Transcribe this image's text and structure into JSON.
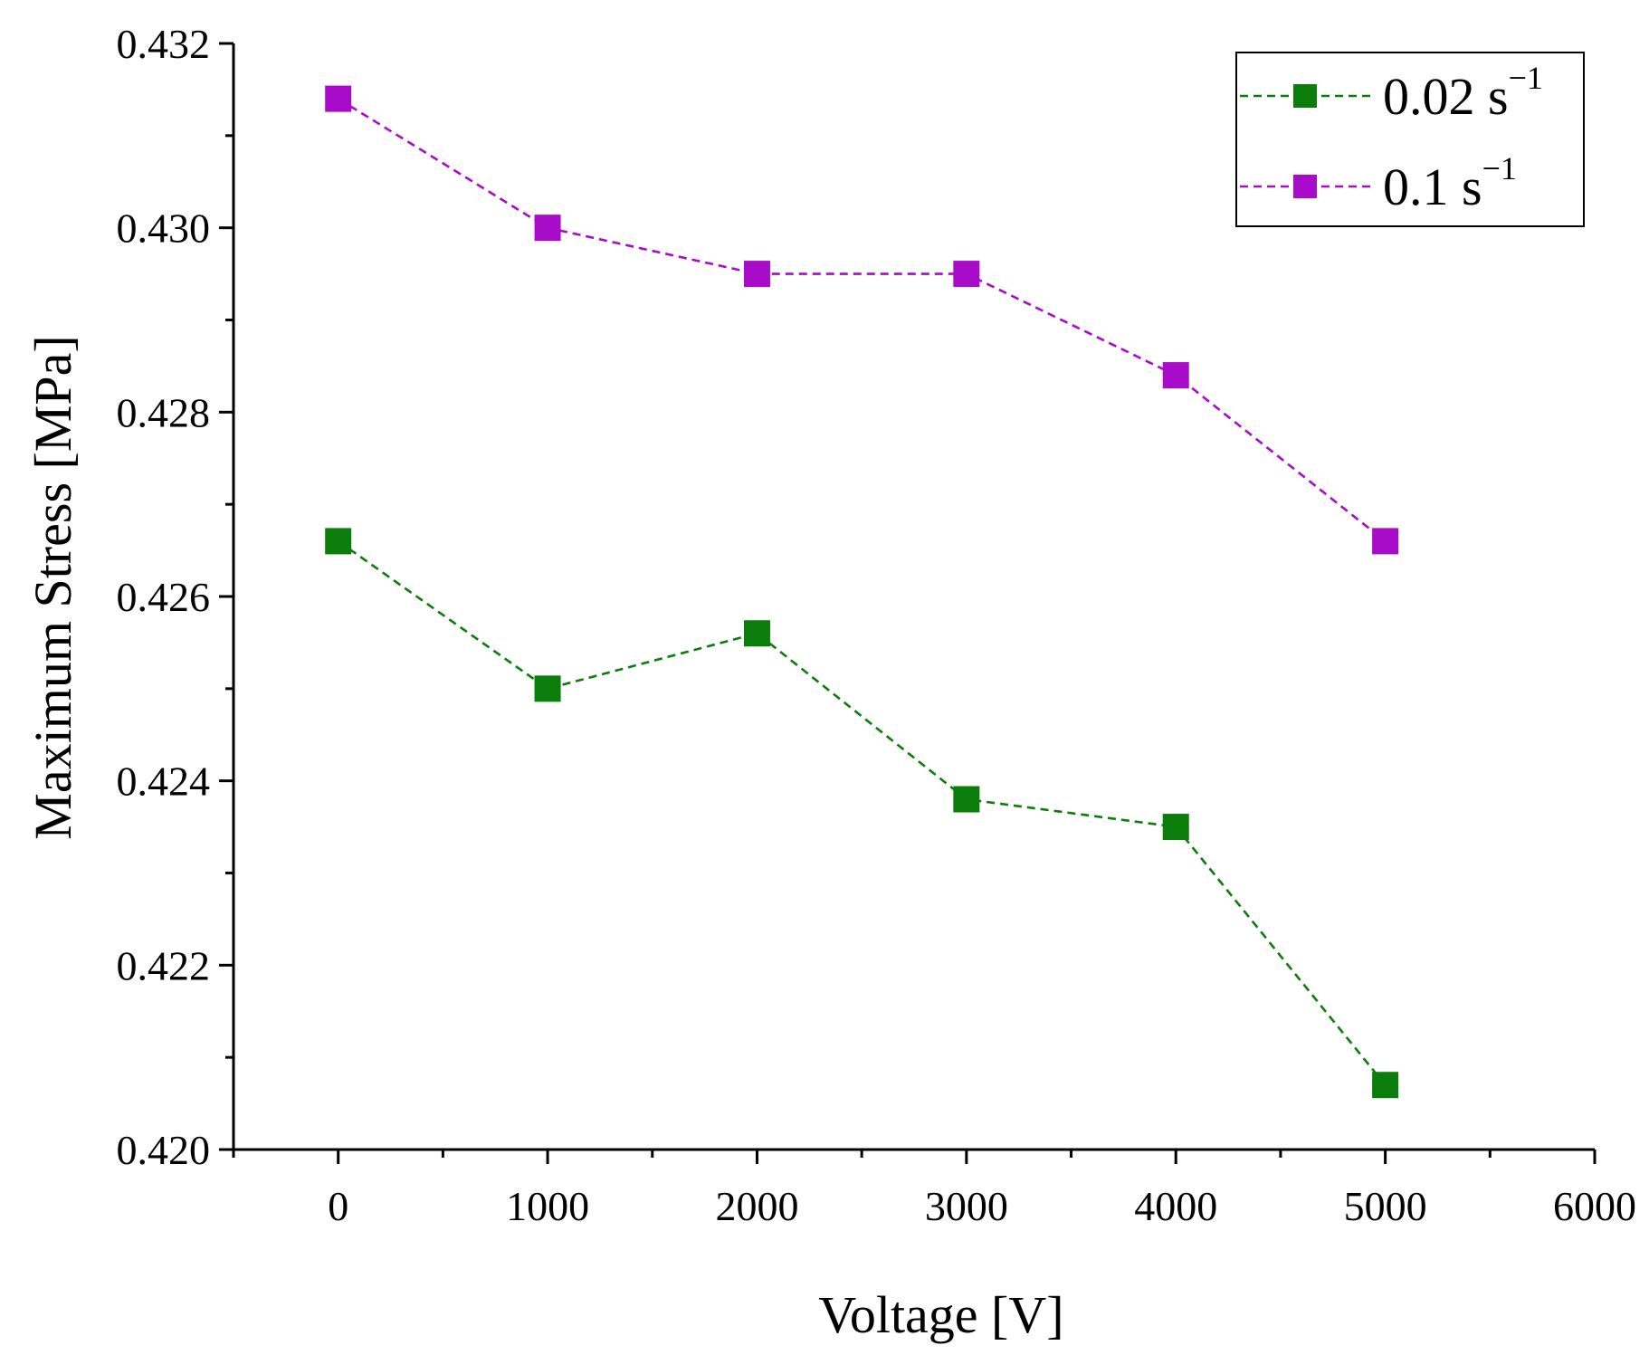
{
  "chart_data": {
    "type": "line",
    "title": "",
    "xlabel": "Voltage [V]",
    "ylabel": "Maximum Stress [MPa]",
    "xlim": [
      -500,
      6000
    ],
    "ylim": [
      0.42,
      0.432
    ],
    "x_ticks": [
      {
        "value": 0,
        "label": "0"
      },
      {
        "value": 1000,
        "label": "1000"
      },
      {
        "value": 2000,
        "label": "2000"
      },
      {
        "value": 3000,
        "label": "3000"
      },
      {
        "value": 4000,
        "label": "4000"
      },
      {
        "value": 5000,
        "label": "5000"
      },
      {
        "value": 6000,
        "label": "6000"
      }
    ],
    "x_minor_ticks": [
      -500,
      500,
      1500,
      2500,
      3500,
      4500,
      5500
    ],
    "y_ticks": [
      {
        "value": 0.42,
        "label": "0.420"
      },
      {
        "value": 0.422,
        "label": "0.422"
      },
      {
        "value": 0.424,
        "label": "0.424"
      },
      {
        "value": 0.426,
        "label": "0.426"
      },
      {
        "value": 0.428,
        "label": "0.428"
      },
      {
        "value": 0.43,
        "label": "0.430"
      },
      {
        "value": 0.432,
        "label": "0.432"
      }
    ],
    "y_minor_ticks": [
      0.421,
      0.423,
      0.425,
      0.427,
      0.429,
      0.431
    ],
    "grid": false,
    "legend_position": "top-right",
    "x": [
      0,
      1000,
      2000,
      3000,
      4000,
      5000
    ],
    "series": [
      {
        "name": "0.02 s",
        "name_superscript": "−1",
        "color": "#0b7d0b",
        "line_style": "dashed",
        "marker": "square",
        "values": [
          0.4266,
          0.425,
          0.4256,
          0.4238,
          0.4235,
          0.4207
        ]
      },
      {
        "name": "0.1 s",
        "name_superscript": "−1",
        "color": "#a80cc8",
        "line_style": "dashed",
        "marker": "square",
        "values": [
          0.4314,
          0.43,
          0.4295,
          0.4295,
          0.4284,
          0.4266
        ]
      }
    ]
  }
}
